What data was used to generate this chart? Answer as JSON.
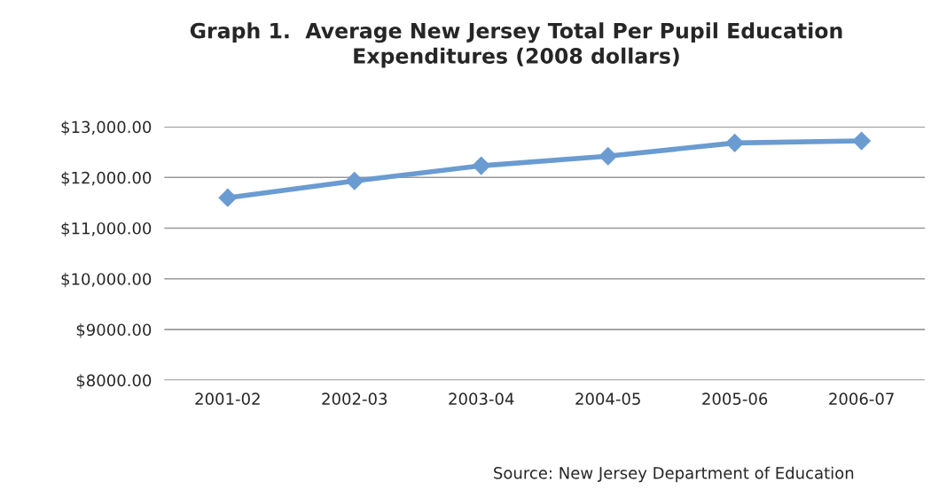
{
  "chart_data": {
    "type": "line",
    "title": "Graph 1.  Average New Jersey Total Per Pupil Education\nExpenditures (2008 dollars)",
    "categories": [
      "2001-02",
      "2002-03",
      "2003-04",
      "2004-05",
      "2005-06",
      "2006-07"
    ],
    "series": [
      {
        "color": "#6a9bd1",
        "values": [
          11600,
          11930,
          12230,
          12420,
          12680,
          12720
        ]
      }
    ],
    "marker": "diamond",
    "line_style": "solid",
    "grid": "y",
    "legend": false,
    "ylim": [
      8000,
      13000
    ],
    "yticks": [
      {
        "value": 8000,
        "label": "$8000.00"
      },
      {
        "value": 9000,
        "label": "$9000.00"
      },
      {
        "value": 10000,
        "label": "$10,000.00"
      },
      {
        "value": 11000,
        "label": "$11,000.00"
      },
      {
        "value": 12000,
        "label": "$12,000.00"
      },
      {
        "value": 13000,
        "label": "$13,000.00"
      }
    ],
    "annotations": [
      "Source: New Jersey Department of Education"
    ]
  }
}
